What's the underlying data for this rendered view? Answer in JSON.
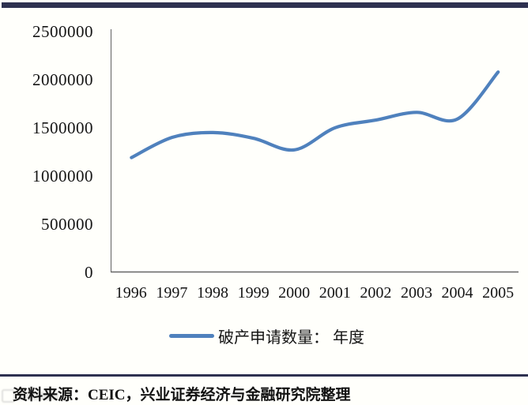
{
  "page": {
    "background": "#fffffb",
    "top_bar_color": "#2e3150",
    "divider_color": "#2e3150",
    "text_color": "#141414"
  },
  "chart_data": {
    "type": "line",
    "title": "",
    "categories": [
      "1996",
      "1997",
      "1998",
      "1999",
      "2000",
      "2001",
      "2002",
      "2003",
      "2004",
      "2005"
    ],
    "series": [
      {
        "name": "破产申请数量： 年度",
        "values": [
          1190000,
          1400000,
          1450000,
          1390000,
          1270000,
          1500000,
          1580000,
          1660000,
          1590000,
          2080000
        ],
        "color": "#4f81bd",
        "smooth": true,
        "line_width": 4.2
      }
    ],
    "xlabel": "",
    "ylabel": "",
    "ylim": [
      0,
      2500000
    ],
    "y_tick_labels": [
      "2500000",
      "2000000",
      "1500000",
      "1000000",
      "500000",
      "0"
    ],
    "grid": "off",
    "legend_position": "bottom-center",
    "axis_color": "#737373"
  },
  "legend": {
    "label": "破产申请数量： 年度",
    "swatch_color": "#4f81bd"
  },
  "footer": {
    "source": "资料来源：CEIC，兴业证券经济与金融研究院整理"
  }
}
